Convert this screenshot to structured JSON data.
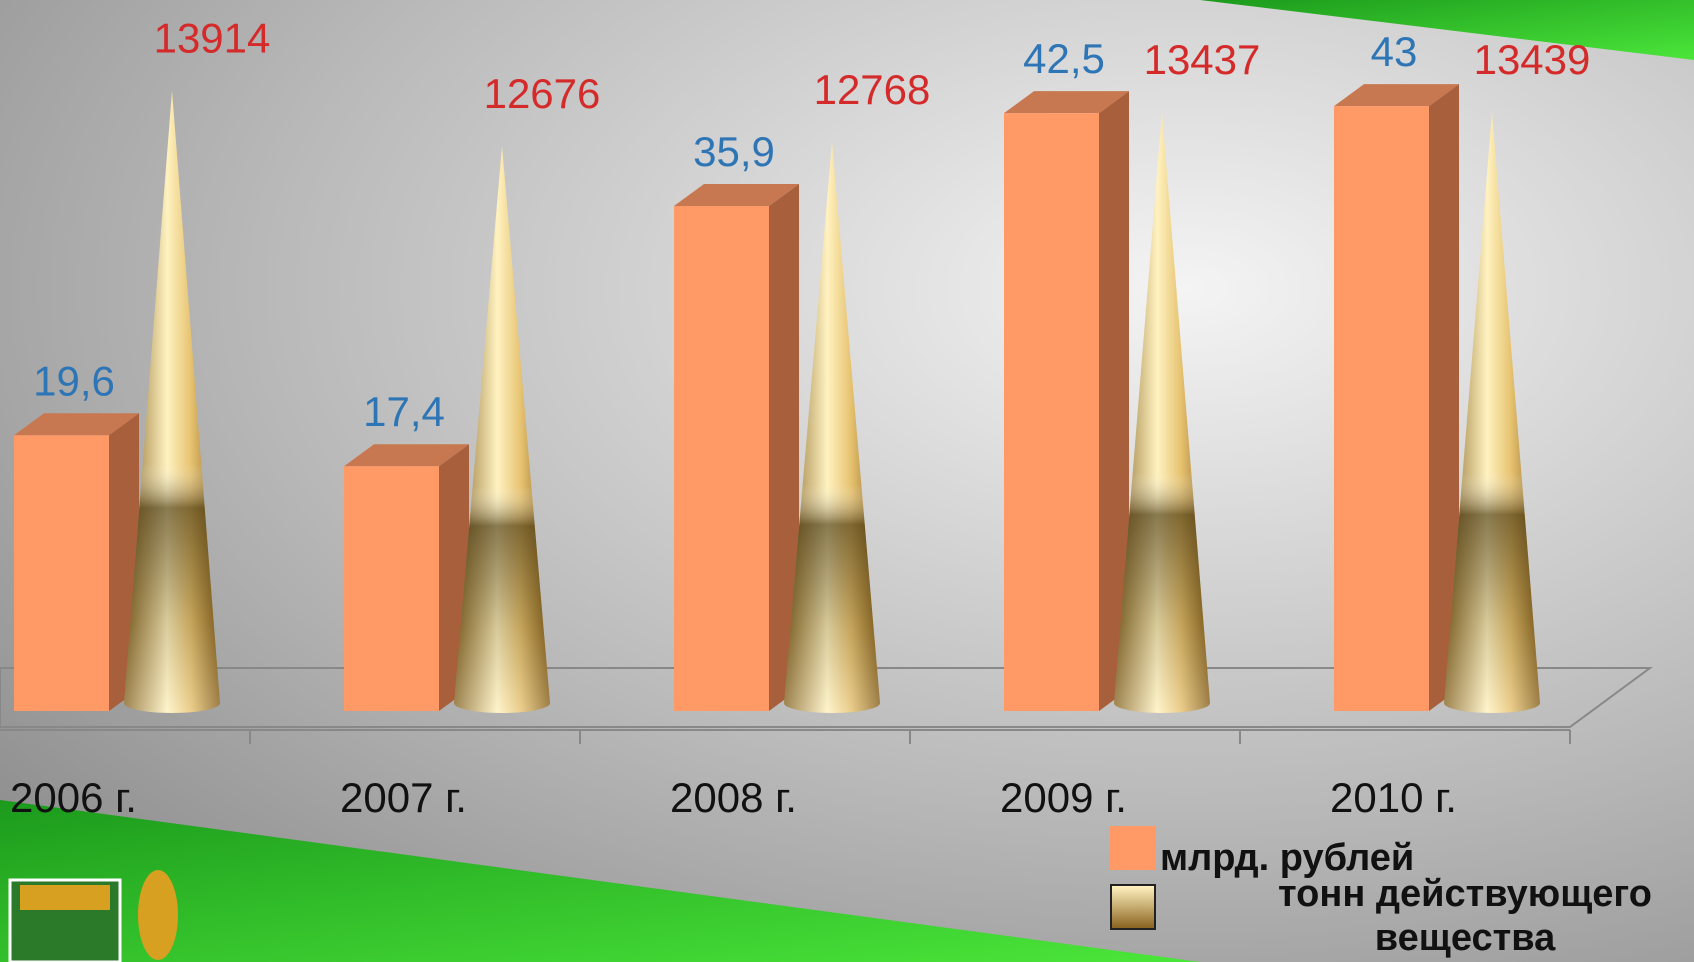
{
  "chart_data": {
    "type": "bar-cone",
    "categories": [
      "2006 г.",
      "2007 г.",
      "2008 г.",
      "2009 г.",
      "2010 г."
    ],
    "series": [
      {
        "name": "млрд. рублей",
        "color": "#ff9966",
        "values": [
          19.6,
          17.4,
          35.9,
          42.5,
          43
        ],
        "value_labels": [
          "19,6",
          "17,4",
          "35,9",
          "42,5",
          "43"
        ],
        "label_color": "#2e75b6"
      },
      {
        "name": "тонн действующего вещества",
        "color": "#d9b25a",
        "values": [
          13914,
          12676,
          12768,
          13437,
          13439
        ],
        "axis": "y2",
        "label_color": "#d42a2a"
      }
    ],
    "ylim": [
      0,
      45
    ],
    "y2lim": [
      0,
      14200
    ]
  }
}
